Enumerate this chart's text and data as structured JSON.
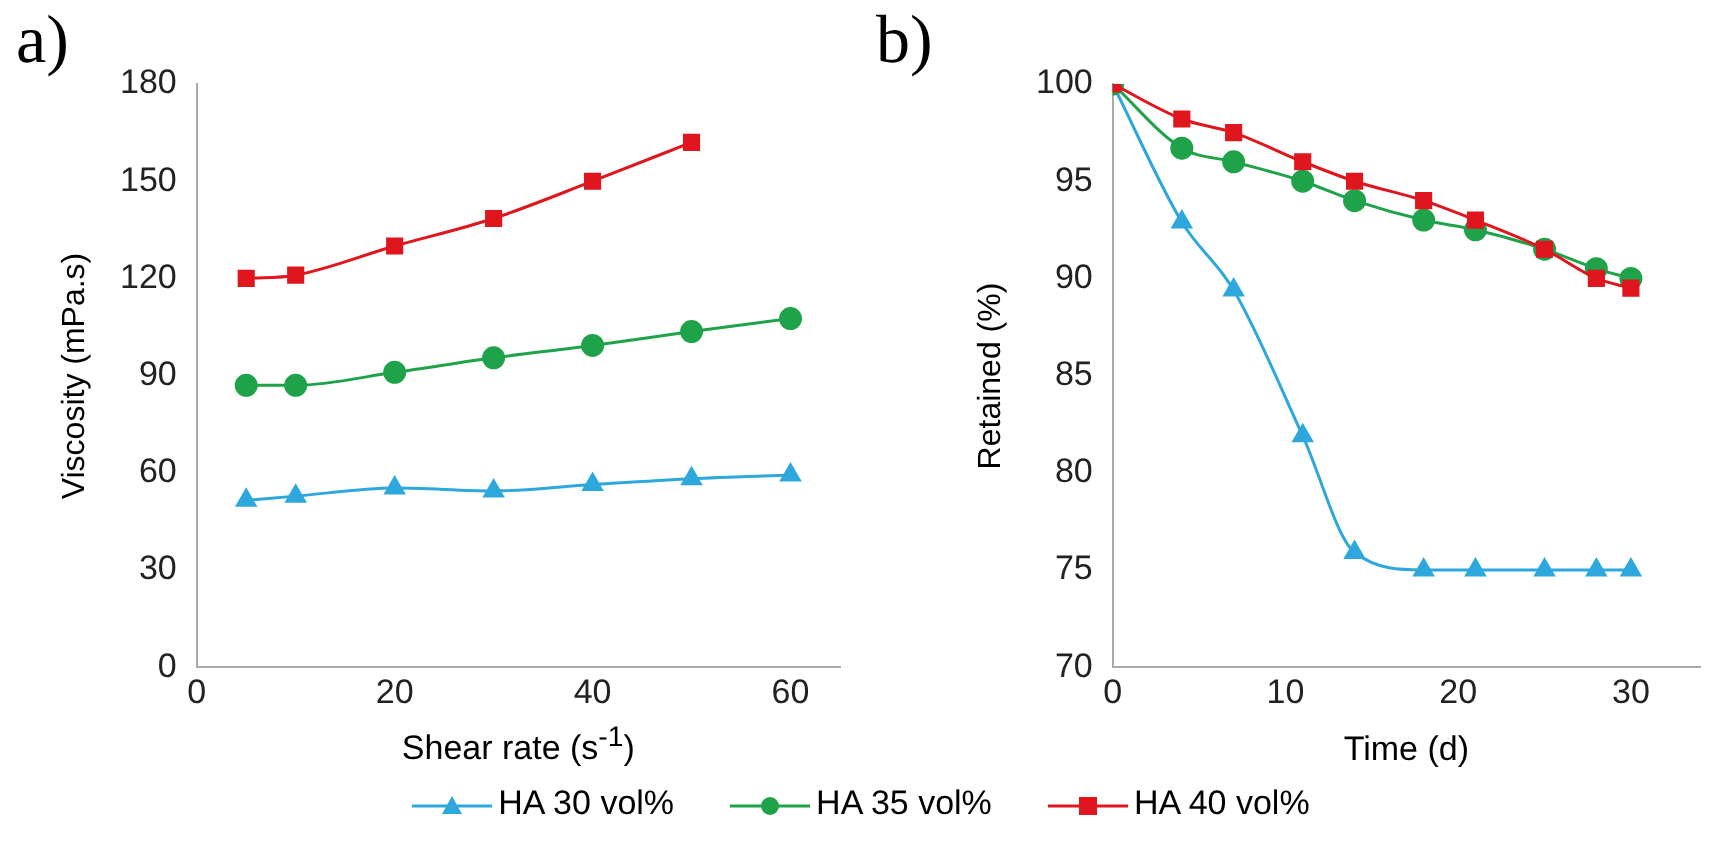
{
  "chart_data": [
    {
      "type": "line",
      "title": "a)",
      "xlabel": "Shear rate (s$^{-1}$)",
      "ylabel": "Viscosity (mPa.s)",
      "xlim": [
        0,
        65
      ],
      "xticks": [
        0,
        20,
        40,
        60
      ],
      "ylim": [
        0,
        180
      ],
      "yticks": [
        0,
        30,
        60,
        90,
        120,
        150,
        180
      ],
      "grid": false,
      "legend": "bottom",
      "series": [
        {
          "name": "HA 30 vol%",
          "color": "#2ea8dc",
          "marker": "triangle",
          "x": [
            5,
            10,
            20,
            30,
            40,
            50,
            60
          ],
          "values": [
            51.5,
            52.8,
            55.3,
            54.4,
            56.4,
            58.2,
            59.3
          ]
        },
        {
          "name": "HA 35 vol%",
          "color": "#1fa34a",
          "marker": "circle",
          "x": [
            5,
            10,
            20,
            30,
            40,
            50,
            60
          ],
          "values": [
            87,
            87,
            91,
            95.5,
            99.3,
            103.6,
            107.6
          ]
        },
        {
          "name": "HA 40 vol%",
          "color": "#e0161e",
          "marker": "square",
          "x": [
            5,
            10,
            20,
            30,
            40,
            50
          ],
          "values": [
            120,
            121,
            130,
            138.5,
            150,
            162
          ]
        }
      ]
    },
    {
      "type": "line",
      "title": "b)",
      "xlabel": "Time (d)",
      "ylabel": "Retained (%)",
      "xlim": [
        0,
        34
      ],
      "xticks": [
        0,
        10,
        20,
        30
      ],
      "ylim": [
        70,
        100
      ],
      "yticks": [
        70,
        75,
        80,
        85,
        90,
        95,
        100
      ],
      "grid": false,
      "series": [
        {
          "color": "#2ea8dc",
          "marker": "triangle",
          "x": [
            0,
            4,
            7,
            11,
            14,
            18,
            21,
            25,
            28,
            30
          ],
          "values": [
            100,
            92.9,
            89.4,
            81.9,
            75.9,
            75,
            75,
            75,
            75,
            75
          ]
        },
        {
          "color": "#1fa34a",
          "marker": "circle",
          "x": [
            0,
            4,
            7,
            11,
            14,
            18,
            21,
            25,
            28,
            30
          ],
          "values": [
            100,
            96.7,
            96,
            95,
            94,
            93,
            92.5,
            91.5,
            90.5,
            90
          ]
        },
        {
          "color": "#e0161e",
          "marker": "square",
          "x": [
            0,
            4,
            7,
            11,
            14,
            18,
            21,
            25,
            28,
            30
          ],
          "values": [
            100,
            98.2,
            97.5,
            96,
            95,
            94,
            93,
            91.5,
            90,
            89.5
          ]
        }
      ]
    }
  ]
}
